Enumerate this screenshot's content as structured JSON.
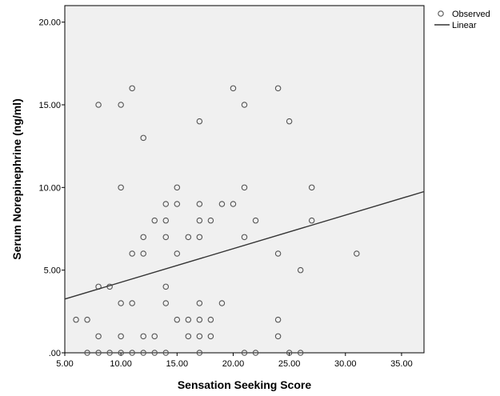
{
  "chart_data": {
    "type": "scatter",
    "xlabel": "Sensation Seeking Score",
    "ylabel": "Serum Norepinephrine (ng/ml)",
    "xlim": [
      5.0,
      37.0
    ],
    "ylim": [
      0.0,
      21.0
    ],
    "x_ticks": [
      "5.00",
      "10.00",
      "15.00",
      "20.00",
      "25.00",
      "30.00",
      "35.00"
    ],
    "x_tick_values": [
      5,
      10,
      15,
      20,
      25,
      30,
      35
    ],
    "y_ticks": [
      ".00",
      "5.00",
      "10.00",
      "15.00",
      "20.00"
    ],
    "y_tick_values": [
      0,
      5,
      10,
      15,
      20
    ],
    "grid": false,
    "legend_position": "top-right outside",
    "legend": {
      "observed": "Observed",
      "linear": "Linear"
    },
    "series": [
      {
        "name": "Observed",
        "kind": "scatter",
        "points": [
          [
            6,
            2
          ],
          [
            7,
            2
          ],
          [
            7,
            0
          ],
          [
            8,
            4
          ],
          [
            8,
            1
          ],
          [
            8,
            0
          ],
          [
            8,
            15
          ],
          [
            9,
            4
          ],
          [
            9,
            0
          ],
          [
            10,
            15
          ],
          [
            10,
            10
          ],
          [
            10,
            3
          ],
          [
            10,
            1
          ],
          [
            10,
            0
          ],
          [
            11,
            16
          ],
          [
            11,
            6
          ],
          [
            11,
            3
          ],
          [
            11,
            0
          ],
          [
            12,
            13
          ],
          [
            12,
            7
          ],
          [
            12,
            6
          ],
          [
            12,
            1
          ],
          [
            12,
            0
          ],
          [
            13,
            8
          ],
          [
            13,
            1
          ],
          [
            13,
            0
          ],
          [
            14,
            9
          ],
          [
            14,
            8
          ],
          [
            14,
            7
          ],
          [
            14,
            4
          ],
          [
            14,
            3
          ],
          [
            14,
            0
          ],
          [
            15,
            10
          ],
          [
            15,
            9
          ],
          [
            15,
            6
          ],
          [
            15,
            2
          ],
          [
            16,
            7
          ],
          [
            16,
            2
          ],
          [
            16,
            1
          ],
          [
            17,
            14
          ],
          [
            17,
            9
          ],
          [
            17,
            8
          ],
          [
            17,
            7
          ],
          [
            17,
            3
          ],
          [
            17,
            2
          ],
          [
            17,
            1
          ],
          [
            17,
            0
          ],
          [
            18,
            8
          ],
          [
            18,
            2
          ],
          [
            18,
            1
          ],
          [
            19,
            9
          ],
          [
            19,
            3
          ],
          [
            20,
            16
          ],
          [
            20,
            9
          ],
          [
            21,
            15
          ],
          [
            21,
            10
          ],
          [
            21,
            7
          ],
          [
            21,
            0
          ],
          [
            22,
            8
          ],
          [
            22,
            0
          ],
          [
            24,
            16
          ],
          [
            24,
            6
          ],
          [
            24,
            2
          ],
          [
            24,
            1
          ],
          [
            25,
            14
          ],
          [
            25,
            0
          ],
          [
            26,
            5
          ],
          [
            26,
            0
          ],
          [
            27,
            10
          ],
          [
            27,
            8
          ],
          [
            31,
            6
          ]
        ]
      },
      {
        "name": "Linear",
        "kind": "line",
        "points": [
          [
            5.0,
            3.25
          ],
          [
            37.0,
            9.75
          ]
        ]
      }
    ]
  },
  "colors": {
    "plot_background": "#f0f0f0",
    "marker_stroke": "#555555",
    "line": "#333333",
    "axis": "#000000",
    "text": "#000000"
  }
}
